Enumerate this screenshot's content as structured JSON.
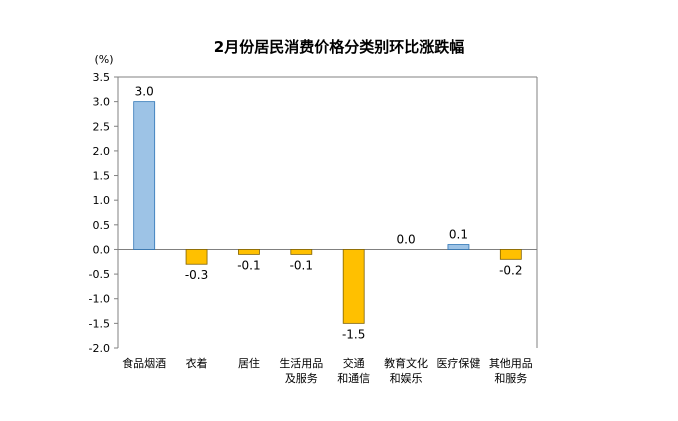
{
  "chart_data": {
    "type": "bar",
    "title": "2月份居民消费价格分类别环比涨跌幅",
    "unit": "(%)",
    "categories": [
      [
        "食品烟酒"
      ],
      [
        "衣着"
      ],
      [
        "居住"
      ],
      [
        "生活用品",
        "及服务"
      ],
      [
        "交通",
        "和通信"
      ],
      [
        "教育文化",
        "和娱乐"
      ],
      [
        "医疗保健"
      ],
      [
        "其他用品",
        "和服务"
      ]
    ],
    "values": [
      3.0,
      -0.3,
      -0.1,
      -0.1,
      -1.5,
      0.0,
      0.1,
      -0.2
    ],
    "data_labels": [
      "3.0",
      "-0.3",
      "-0.1",
      "-0.1",
      "-1.5",
      "0.0",
      "0.1",
      "-0.2"
    ],
    "y_ticks": [
      "3.5",
      "3.0",
      "2.5",
      "2.0",
      "1.5",
      "1.0",
      "0.5",
      "0.0",
      "-0.5",
      "-1.0",
      "-1.5",
      "-2.0"
    ],
    "ylim": [
      -2.0,
      3.5
    ],
    "grid": false,
    "colors": {
      "positive": "#9DC3E6",
      "positive_stroke": "#2E75B6",
      "negative": "#FFC000",
      "negative_stroke": "#7F6000",
      "axis": "#808080"
    }
  }
}
